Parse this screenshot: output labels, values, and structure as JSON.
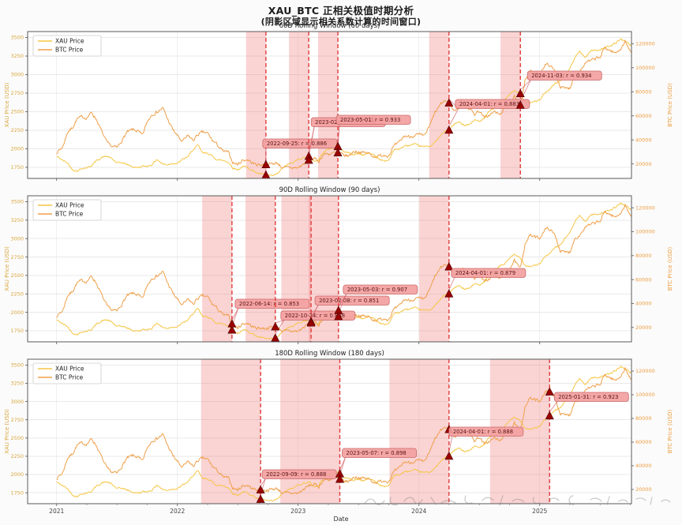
{
  "chart_data": {
    "type": "line",
    "title": "XAU_BTC 正相关极值时期分析",
    "subtitle": "(阴影区域显示相关系数计算的时间窗口)",
    "xlabel": "Date",
    "x_ticks": [
      "2021",
      "2022",
      "2023",
      "2024",
      "2025"
    ],
    "x_tick_years": [
      2021,
      2022,
      2023,
      2024,
      2025
    ],
    "x_range": [
      2020.76,
      2025.76
    ],
    "ylabel_left": "XAU Price (USD)",
    "ylabel_right": "BTC Price (USD)",
    "ylim_left": [
      1600,
      3580
    ],
    "ylim_right": [
      8000,
      130000
    ],
    "yticks_left": [
      1750,
      2000,
      2250,
      2500,
      2750,
      3000,
      3250,
      3500
    ],
    "yticks_right": [
      20000,
      40000,
      60000,
      80000,
      100000,
      120000
    ],
    "grid": true,
    "legend_position": "upper left",
    "legend": [
      "XAU Price",
      "BTC Price"
    ],
    "series": [
      {
        "name": "XAU Price",
        "axis": "left",
        "color": "#F5C644",
        "x": [
          2021.0,
          2021.05,
          2021.09,
          2021.13,
          2021.17,
          2021.21,
          2021.25,
          2021.29,
          2021.33,
          2021.38,
          2021.42,
          2021.46,
          2021.5,
          2021.54,
          2021.58,
          2021.63,
          2021.67,
          2021.71,
          2021.75,
          2021.79,
          2021.83,
          2021.88,
          2021.92,
          2021.96,
          2022.0,
          2022.04,
          2022.09,
          2022.13,
          2022.17,
          2022.21,
          2022.25,
          2022.29,
          2022.33,
          2022.38,
          2022.42,
          2022.46,
          2022.5,
          2022.54,
          2022.58,
          2022.63,
          2022.67,
          2022.73,
          2022.79,
          2022.83,
          2022.88,
          2022.92,
          2022.96,
          2023.0,
          2023.09,
          2023.13,
          2023.17,
          2023.21,
          2023.25,
          2023.29,
          2023.33,
          2023.38,
          2023.42,
          2023.46,
          2023.5,
          2023.54,
          2023.58,
          2023.63,
          2023.67,
          2023.71,
          2023.75,
          2023.79,
          2023.83,
          2023.88,
          2023.92,
          2023.96,
          2024.0,
          2024.04,
          2024.09,
          2024.13,
          2024.17,
          2024.21,
          2024.25,
          2024.29,
          2024.33,
          2024.38,
          2024.42,
          2024.46,
          2024.5,
          2024.54,
          2024.58,
          2024.63,
          2024.67,
          2024.71,
          2024.75,
          2024.79,
          2024.84,
          2024.88,
          2024.92,
          2024.96,
          2025.0,
          2025.04,
          2025.08,
          2025.13,
          2025.17,
          2025.21,
          2025.25,
          2025.29,
          2025.33,
          2025.38,
          2025.42,
          2025.46,
          2025.5,
          2025.54,
          2025.58,
          2025.63,
          2025.67,
          2025.71,
          2025.76
        ],
        "values": [
          1898,
          1845,
          1808,
          1722,
          1700,
          1738,
          1745,
          1772,
          1840,
          1888,
          1898,
          1862,
          1806,
          1814,
          1790,
          1756,
          1745,
          1762,
          1766,
          1786,
          1858,
          1792,
          1786,
          1806,
          1800,
          1852,
          1898,
          1988,
          2048,
          1938,
          1944,
          1896,
          1852,
          1842,
          1824,
          1742,
          1716,
          1760,
          1750,
          1702,
          1665,
          1645,
          1632,
          1664,
          1754,
          1790,
          1814,
          1860,
          1898,
          1836,
          1846,
          1962,
          1990,
          2014,
          2028,
          1962,
          1946,
          1922,
          1934,
          1916,
          1940,
          1920,
          1866,
          1832,
          1846,
          1984,
          1992,
          2034,
          2044,
          2058,
          2040,
          2026,
          2036,
          2082,
          2158,
          2228,
          2250,
          2330,
          2358,
          2322,
          2332,
          2388,
          2372,
          2400,
          2498,
          2558,
          2628,
          2658,
          2738,
          2778,
          2742,
          2640,
          2622,
          2642,
          2650,
          2748,
          2800,
          2878,
          2912,
          3000,
          3078,
          3238,
          3308,
          3232,
          3318,
          3330,
          3338,
          3358,
          3378,
          3428,
          3478,
          3448,
          3392
        ]
      },
      {
        "name": "BTC Price",
        "axis": "right",
        "color": "#EFA04A",
        "x": [
          2021.0,
          2021.05,
          2021.09,
          2021.13,
          2021.17,
          2021.21,
          2021.25,
          2021.29,
          2021.33,
          2021.38,
          2021.42,
          2021.46,
          2021.5,
          2021.54,
          2021.58,
          2021.63,
          2021.67,
          2021.71,
          2021.75,
          2021.79,
          2021.83,
          2021.88,
          2021.92,
          2021.96,
          2022.0,
          2022.04,
          2022.09,
          2022.13,
          2022.17,
          2022.21,
          2022.25,
          2022.29,
          2022.33,
          2022.38,
          2022.42,
          2022.46,
          2022.5,
          2022.54,
          2022.58,
          2022.63,
          2022.67,
          2022.73,
          2022.79,
          2022.83,
          2022.88,
          2022.92,
          2022.96,
          2023.0,
          2023.09,
          2023.13,
          2023.17,
          2023.21,
          2023.25,
          2023.29,
          2023.33,
          2023.38,
          2023.42,
          2023.46,
          2023.5,
          2023.54,
          2023.58,
          2023.63,
          2023.67,
          2023.71,
          2023.75,
          2023.79,
          2023.83,
          2023.88,
          2023.92,
          2023.96,
          2024.0,
          2024.04,
          2024.09,
          2024.13,
          2024.17,
          2024.21,
          2024.25,
          2024.29,
          2024.33,
          2024.38,
          2024.42,
          2024.46,
          2024.5,
          2024.54,
          2024.58,
          2024.63,
          2024.67,
          2024.71,
          2024.75,
          2024.79,
          2024.84,
          2024.88,
          2024.92,
          2024.96,
          2025.0,
          2025.04,
          2025.08,
          2025.13,
          2025.17,
          2025.21,
          2025.25,
          2025.29,
          2025.33,
          2025.38,
          2025.42,
          2025.46,
          2025.5,
          2025.54,
          2025.58,
          2025.63,
          2025.67,
          2025.71,
          2025.76
        ],
        "values": [
          29500,
          34000,
          46500,
          50000,
          57500,
          59000,
          58500,
          62800,
          57000,
          45500,
          37000,
          34500,
          33500,
          39500,
          46000,
          48500,
          47500,
          43500,
          55000,
          61500,
          63000,
          66500,
          57000,
          49000,
          43500,
          38500,
          43500,
          39500,
          44500,
          46200,
          45500,
          39500,
          36000,
          30200,
          29800,
          21200,
          19600,
          23200,
          23600,
          20200,
          19600,
          19300,
          20400,
          20600,
          16400,
          17100,
          16800,
          16800,
          23200,
          24400,
          22300,
          28100,
          28400,
          29000,
          29200,
          27100,
          26600,
          30400,
          30300,
          29300,
          29100,
          26100,
          26400,
          27700,
          27100,
          34500,
          37000,
          43400,
          42600,
          43800,
          44200,
          42800,
          51500,
          62000,
          68000,
          72800,
          70500,
          64200,
          67500,
          69000,
          66000,
          61200,
          64500,
          58200,
          60500,
          63500,
          60500,
          67500,
          69500,
          75500,
          68800,
          91000,
          97000,
          95500,
          94500,
          102000,
          102500,
          96500,
          84200,
          82500,
          83200,
          94500,
          97000,
          104000,
          105500,
          107500,
          108500,
          117000,
          114500,
          112000,
          116000,
          122000,
          111500
        ]
      }
    ],
    "subplots": [
      {
        "title": "60D Rolling Window (60 days)",
        "window_days": 60,
        "extremes": [
          {
            "date": "2022-09-25",
            "t": 2022.733,
            "r": 0.886,
            "label": "2022-09-25: r = 0.886"
          },
          {
            "date": "2023-02-01",
            "t": 2023.088,
            "r": 0.893,
            "label": "2023-02-01: r = 0.893"
          },
          {
            "date": "2023-05-01",
            "t": 2023.329,
            "r": 0.933,
            "label": "2023-05-01: r = 0.933"
          },
          {
            "date": "2024-04-01",
            "t": 2024.249,
            "r": 0.883,
            "label": "2024-04-01: r = 0.883"
          },
          {
            "date": "2024-11-03",
            "t": 2024.84,
            "r": 0.934,
            "label": "2024-11-03: r = 0.934"
          }
        ]
      },
      {
        "title": "90D Rolling Window (90 days)",
        "window_days": 90,
        "extremes": [
          {
            "date": "2022-06-14",
            "t": 2022.452,
            "r": 0.853,
            "label": "2022-06-14: r = 0.853"
          },
          {
            "date": "2022-10-24",
            "t": 2022.811,
            "r": 0.888,
            "label": "2022-10-24: r = 0.888"
          },
          {
            "date": "2023-02-08",
            "t": 2023.107,
            "r": 0.851,
            "label": "2023-02-08: r = 0.851"
          },
          {
            "date": "2023-05-03",
            "t": 2023.334,
            "r": 0.907,
            "label": "2023-05-03: r = 0.907"
          },
          {
            "date": "2024-04-01",
            "t": 2024.249,
            "r": 0.879,
            "label": "2024-04-01: r = 0.879"
          }
        ]
      },
      {
        "title": "180D Rolling Window (180 days)",
        "window_days": 180,
        "extremes": [
          {
            "date": "2022-09-09",
            "t": 2022.689,
            "r": 0.888,
            "label": "2022-09-09: r = 0.888"
          },
          {
            "date": "2023-05-07",
            "t": 2023.345,
            "r": 0.898,
            "label": "2023-05-07: r = 0.898"
          },
          {
            "date": "2024-04-01",
            "t": 2024.249,
            "r": 0.888,
            "label": "2024-04-01: r = 0.888"
          },
          {
            "date": "2025-01-31",
            "t": 2025.082,
            "r": 0.923,
            "label": "2025-01-31: r = 0.923"
          }
        ]
      }
    ],
    "colors": {
      "xau_line": "#F5C644",
      "btc_line": "#EFA04A",
      "left_tick_text": "#D9A63E",
      "right_tick_text": "#EC9D40",
      "window_band": "rgba(240,118,118,0.32)",
      "extreme_vline": "#E23B3B",
      "extreme_marker": "#990000",
      "annotation_bg": "#F3A0A0",
      "annotation_border": "#C96A6A",
      "annotation_text": "#5C1414",
      "grid": "#E9E9E9",
      "spine": "#5A5A5A"
    }
  }
}
